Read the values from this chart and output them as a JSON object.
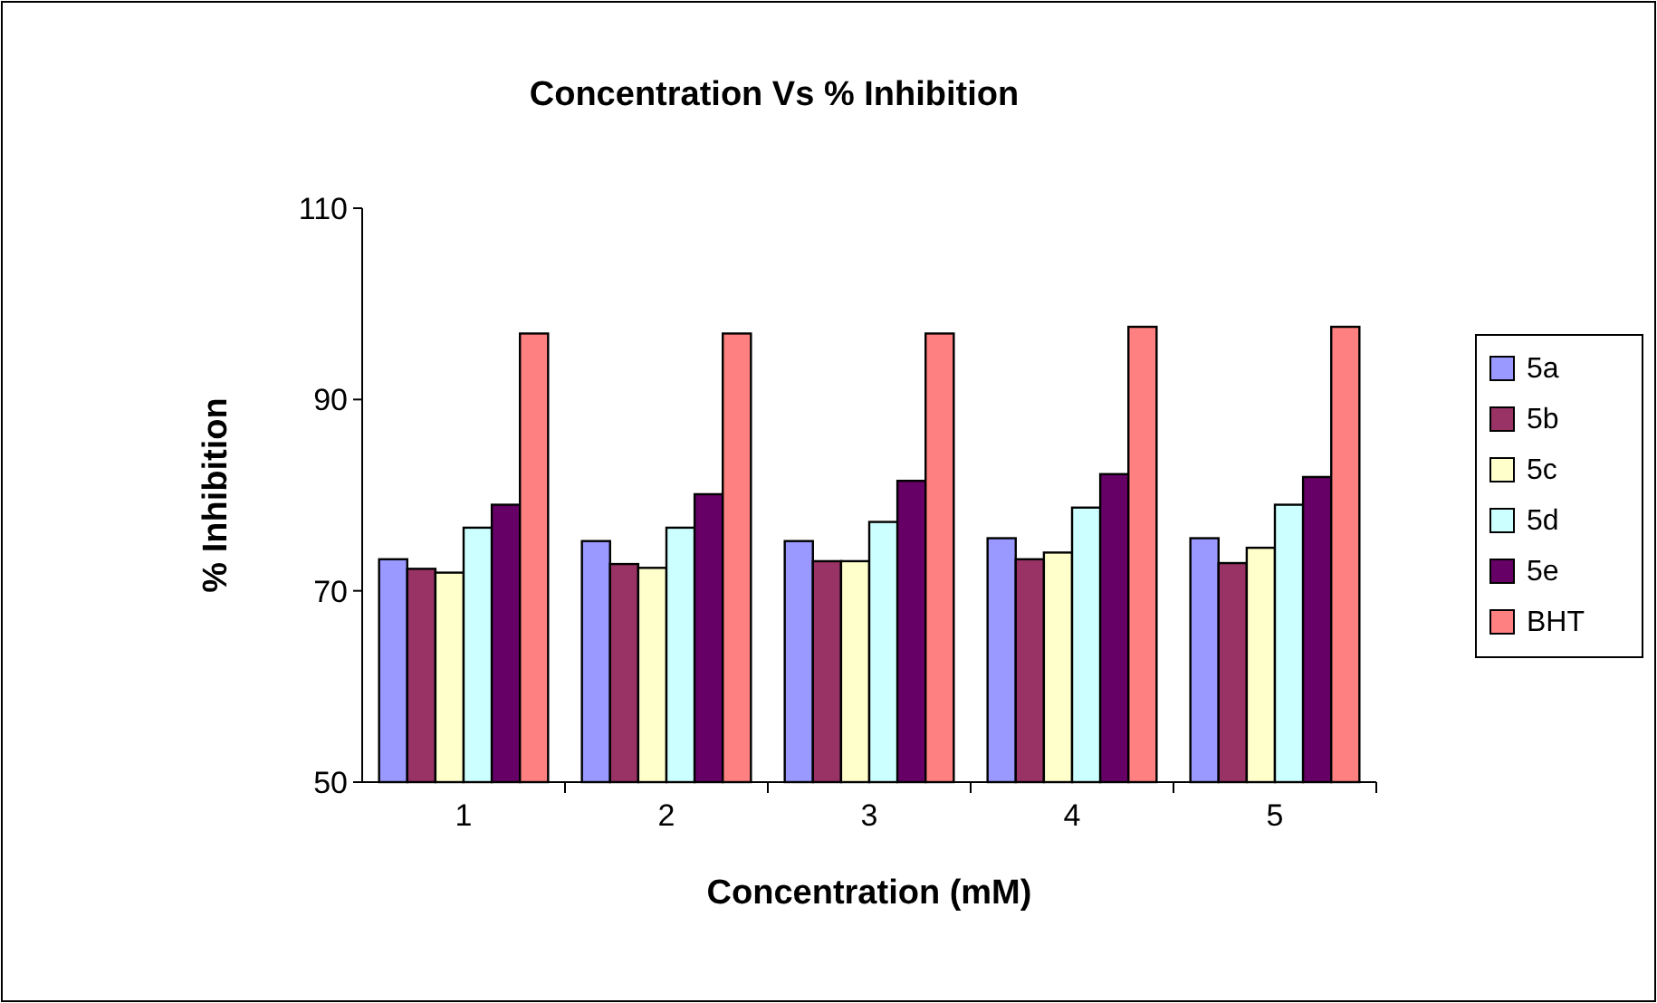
{
  "chart_data": {
    "type": "bar",
    "title": "Concentration Vs % Inhibition",
    "xlabel": "Concentration (mM)",
    "ylabel": "% Inhibition",
    "categories": [
      "1",
      "2",
      "3",
      "4",
      "5"
    ],
    "ylim": [
      50,
      110
    ],
    "yticks": [
      50,
      70,
      90,
      110
    ],
    "grid": false,
    "legend": "right",
    "series": [
      {
        "name": "5a",
        "color": "#9999ff",
        "values": [
          73.3,
          75.2,
          75.2,
          75.5,
          75.5
        ]
      },
      {
        "name": "5b",
        "color": "#993366",
        "values": [
          72.3,
          72.8,
          73.1,
          73.3,
          72.9
        ]
      },
      {
        "name": "5c",
        "color": "#ffffcc",
        "values": [
          71.9,
          72.4,
          73.1,
          74.0,
          74.5
        ]
      },
      {
        "name": "5d",
        "color": "#ccffff",
        "values": [
          76.6,
          76.6,
          77.2,
          78.7,
          79.0
        ]
      },
      {
        "name": "5e",
        "color": "#660066",
        "values": [
          79.0,
          80.1,
          81.5,
          82.2,
          81.9
        ]
      },
      {
        "name": "BHT",
        "color": "#ff8080",
        "values": [
          96.9,
          96.9,
          96.9,
          97.6,
          97.6
        ]
      }
    ]
  }
}
